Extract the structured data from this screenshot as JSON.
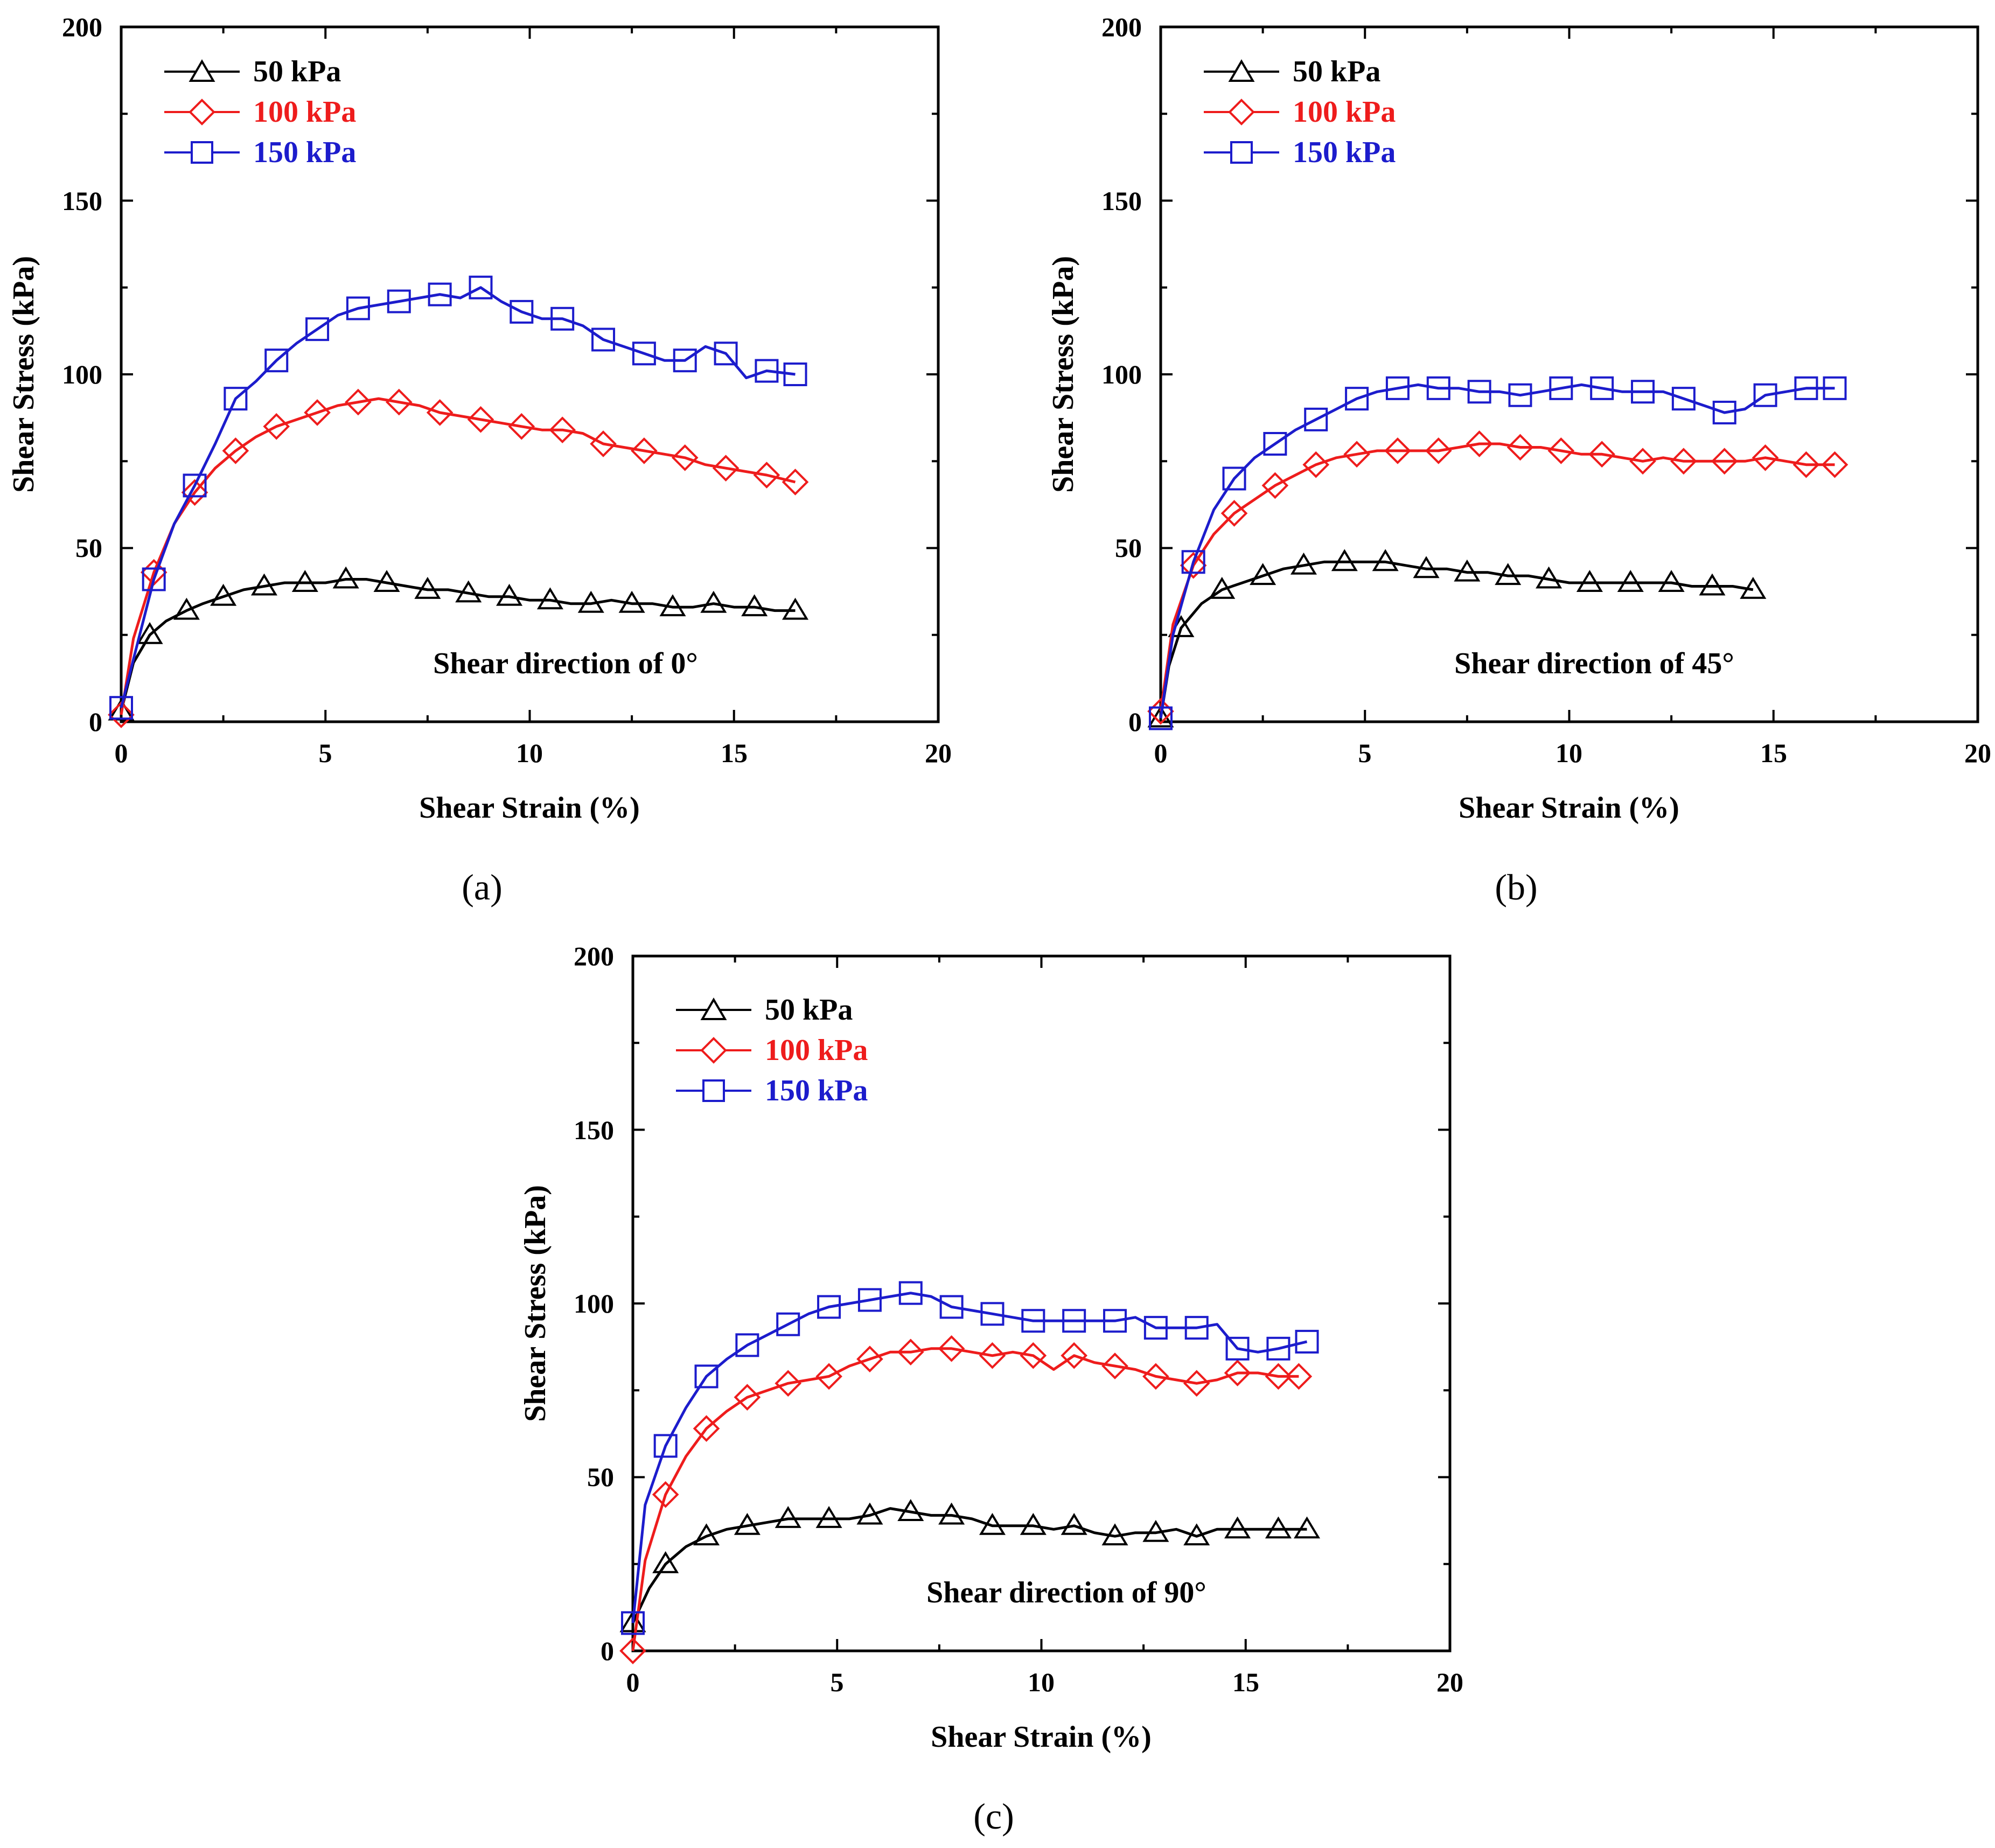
{
  "colors": {
    "s50": "#000000",
    "s100": "#ee1c1c",
    "s150": "#1c1ccc"
  },
  "axis_labels": {
    "x": "Shear Strain (%)",
    "y": "Shear Stress (kPa)"
  },
  "chart_data": [
    {
      "type": "line",
      "panel_label": "(a)",
      "annotation": "Shear direction of 0°",
      "xlabel": "Shear Strain (%)",
      "ylabel": "Shear Stress (kPa)",
      "xlim": [
        0,
        20
      ],
      "ylim": [
        0,
        200
      ],
      "xticks": [
        "0",
        "5",
        "10",
        "15",
        "20"
      ],
      "yticks": [
        "0",
        "50",
        "100",
        "150",
        "200"
      ],
      "series": [
        {
          "name": "50 kPa",
          "marker": "triangle",
          "color": "#000000",
          "x": [
            0,
            0.3,
            0.7,
            1.1,
            1.6,
            2.0,
            2.5,
            3.0,
            3.5,
            4.0,
            4.5,
            5.0,
            5.5,
            6.0,
            6.5,
            7.0,
            7.5,
            8.0,
            8.5,
            9.0,
            9.5,
            10.0,
            10.5,
            11.0,
            11.5,
            12.0,
            12.5,
            13.0,
            13.5,
            14.0,
            14.5,
            15.0,
            15.5,
            16.0,
            16.5
          ],
          "y": [
            3,
            17,
            25,
            29,
            32,
            34,
            36,
            38,
            39,
            40,
            40,
            40,
            41,
            41,
            40,
            39,
            38,
            38,
            37,
            36,
            36,
            35,
            35,
            34,
            34,
            35,
            34,
            34,
            33,
            33,
            34,
            33,
            33,
            32,
            32
          ]
        },
        {
          "name": "100 kPa",
          "marker": "diamond",
          "color": "#ee1c1c",
          "x": [
            0,
            0.3,
            0.8,
            1.3,
            1.8,
            2.3,
            2.8,
            3.3,
            3.8,
            4.3,
            4.8,
            5.3,
            5.8,
            6.3,
            6.8,
            7.3,
            7.8,
            8.3,
            8.8,
            9.3,
            9.8,
            10.3,
            10.8,
            11.3,
            11.8,
            12.3,
            12.8,
            13.3,
            13.8,
            14.3,
            14.8,
            15.3,
            15.8,
            16.5
          ],
          "y": [
            2,
            24,
            43,
            57,
            66,
            73,
            78,
            82,
            85,
            87,
            89,
            91,
            92,
            93,
            92,
            91,
            89,
            88,
            87,
            86,
            85,
            84,
            84,
            83,
            80,
            79,
            78,
            77,
            76,
            74,
            73,
            72,
            71,
            69
          ]
        },
        {
          "name": "150 kPa",
          "marker": "square",
          "color": "#1c1ccc",
          "x": [
            0,
            0.3,
            0.8,
            1.3,
            1.8,
            2.3,
            2.8,
            3.3,
            3.8,
            4.3,
            4.8,
            5.3,
            5.8,
            6.3,
            6.8,
            7.3,
            7.8,
            8.3,
            8.8,
            9.3,
            9.8,
            10.3,
            10.8,
            11.3,
            11.8,
            12.3,
            12.8,
            13.3,
            13.8,
            14.3,
            14.8,
            15.3,
            15.8,
            16.5
          ],
          "y": [
            4,
            18,
            41,
            57,
            68,
            80,
            93,
            98,
            104,
            109,
            113,
            117,
            119,
            120,
            121,
            122,
            123,
            122,
            125,
            121,
            118,
            116,
            116,
            114,
            110,
            108,
            106,
            104,
            104,
            108,
            106,
            99,
            101,
            100
          ]
        }
      ]
    },
    {
      "type": "line",
      "panel_label": "(b)",
      "annotation": "Shear direction of 45°",
      "xlabel": "Shear Strain (%)",
      "ylabel": "Shear Stress (kPa)",
      "xlim": [
        0,
        20
      ],
      "ylim": [
        0,
        200
      ],
      "xticks": [
        "0",
        "5",
        "10",
        "15",
        "20"
      ],
      "yticks": [
        "0",
        "50",
        "100",
        "150",
        "200"
      ],
      "series": [
        {
          "name": "50 kPa",
          "marker": "triangle",
          "color": "#000000",
          "x": [
            0,
            0.2,
            0.5,
            1.0,
            1.5,
            2.0,
            2.5,
            3.0,
            3.5,
            4.0,
            4.5,
            5.0,
            5.5,
            6.0,
            6.5,
            7.0,
            7.5,
            8.0,
            8.5,
            9.0,
            9.5,
            10.0,
            10.5,
            11.0,
            11.5,
            12.0,
            12.5,
            13.0,
            13.5,
            14.0,
            14.5
          ],
          "y": [
            1,
            16,
            27,
            34,
            38,
            40,
            42,
            44,
            45,
            46,
            46,
            46,
            46,
            45,
            44,
            44,
            43,
            43,
            42,
            42,
            41,
            40,
            40,
            40,
            40,
            40,
            40,
            39,
            39,
            39,
            38
          ]
        },
        {
          "name": "100 kPa",
          "marker": "diamond",
          "color": "#ee1c1c",
          "x": [
            0,
            0.3,
            0.8,
            1.3,
            1.8,
            2.3,
            2.8,
            3.3,
            3.8,
            4.3,
            4.8,
            5.3,
            5.8,
            6.3,
            6.8,
            7.3,
            7.8,
            8.3,
            8.8,
            9.3,
            9.8,
            10.3,
            10.8,
            11.3,
            11.8,
            12.3,
            12.8,
            13.3,
            13.8,
            14.3,
            14.8,
            15.3,
            15.8,
            16.5
          ],
          "y": [
            3,
            28,
            45,
            54,
            60,
            64,
            68,
            71,
            74,
            76,
            77,
            78,
            78,
            78,
            78,
            79,
            80,
            80,
            79,
            79,
            78,
            77,
            77,
            76,
            75,
            76,
            75,
            75,
            75,
            75,
            76,
            75,
            74,
            74
          ]
        },
        {
          "name": "150 kPa",
          "marker": "square",
          "color": "#1c1ccc",
          "x": [
            0,
            0.3,
            0.8,
            1.3,
            1.8,
            2.3,
            2.8,
            3.3,
            3.8,
            4.3,
            4.8,
            5.3,
            5.8,
            6.3,
            6.8,
            7.3,
            7.8,
            8.3,
            8.8,
            9.3,
            9.8,
            10.3,
            10.8,
            11.3,
            11.8,
            12.3,
            12.8,
            13.3,
            13.8,
            14.3,
            14.8,
            15.3,
            15.8,
            16.5
          ],
          "y": [
            1,
            25,
            46,
            61,
            70,
            76,
            80,
            84,
            87,
            90,
            93,
            95,
            96,
            97,
            96,
            96,
            95,
            95,
            94,
            95,
            96,
            97,
            96,
            95,
            95,
            95,
            93,
            91,
            89,
            90,
            94,
            95,
            96,
            96
          ]
        }
      ]
    },
    {
      "type": "line",
      "panel_label": "(c)",
      "annotation": "Shear direction of 90°",
      "xlabel": "Shear Strain (%)",
      "ylabel": "Shear Stress (kPa)",
      "xlim": [
        0,
        20
      ],
      "ylim": [
        0,
        200
      ],
      "xticks": [
        "0",
        "5",
        "10",
        "15",
        "20"
      ],
      "yticks": [
        "0",
        "50",
        "100",
        "150",
        "200"
      ],
      "series": [
        {
          "name": "50 kPa",
          "marker": "triangle",
          "color": "#000000",
          "x": [
            0,
            0.4,
            0.8,
            1.3,
            1.8,
            2.3,
            2.8,
            3.3,
            3.8,
            4.3,
            4.8,
            5.3,
            5.8,
            6.3,
            6.8,
            7.3,
            7.8,
            8.3,
            8.8,
            9.3,
            9.8,
            10.3,
            10.8,
            11.3,
            11.8,
            12.3,
            12.8,
            13.3,
            13.8,
            14.3,
            14.8,
            15.3,
            15.8,
            16.5
          ],
          "y": [
            8,
            18,
            25,
            30,
            33,
            35,
            36,
            37,
            38,
            38,
            38,
            38,
            39,
            41,
            40,
            39,
            39,
            38,
            36,
            36,
            36,
            35,
            36,
            34,
            33,
            34,
            34,
            35,
            33,
            35,
            35,
            35,
            35,
            35
          ]
        },
        {
          "name": "100 kPa",
          "marker": "diamond",
          "color": "#ee1c1c",
          "x": [
            0,
            0.3,
            0.8,
            1.3,
            1.8,
            2.3,
            2.8,
            3.3,
            3.8,
            4.3,
            4.8,
            5.3,
            5.8,
            6.3,
            6.8,
            7.3,
            7.8,
            8.3,
            8.8,
            9.3,
            9.8,
            10.3,
            10.8,
            11.3,
            11.8,
            12.3,
            12.8,
            13.3,
            13.8,
            14.3,
            14.8,
            15.3,
            15.8,
            16.3
          ],
          "y": [
            0,
            26,
            45,
            56,
            64,
            69,
            73,
            75,
            77,
            78,
            79,
            82,
            84,
            86,
            86,
            87,
            87,
            86,
            85,
            86,
            85,
            81,
            85,
            83,
            82,
            81,
            79,
            78,
            77,
            78,
            80,
            80,
            79,
            79
          ]
        },
        {
          "name": "150 kPa",
          "marker": "square",
          "color": "#1c1ccc",
          "x": [
            0,
            0.3,
            0.8,
            1.3,
            1.8,
            2.3,
            2.8,
            3.3,
            3.8,
            4.3,
            4.8,
            5.3,
            5.8,
            6.3,
            6.8,
            7.3,
            7.8,
            8.3,
            8.8,
            9.3,
            9.8,
            10.3,
            10.8,
            11.3,
            11.8,
            12.3,
            12.8,
            13.3,
            13.8,
            14.3,
            14.8,
            15.3,
            15.8,
            16.5
          ],
          "y": [
            8,
            42,
            59,
            70,
            79,
            84,
            88,
            91,
            94,
            97,
            99,
            100,
            101,
            102,
            103,
            102,
            99,
            98,
            97,
            96,
            95,
            95,
            95,
            95,
            95,
            96,
            93,
            93,
            93,
            94,
            87,
            86,
            87,
            89
          ]
        }
      ]
    }
  ]
}
